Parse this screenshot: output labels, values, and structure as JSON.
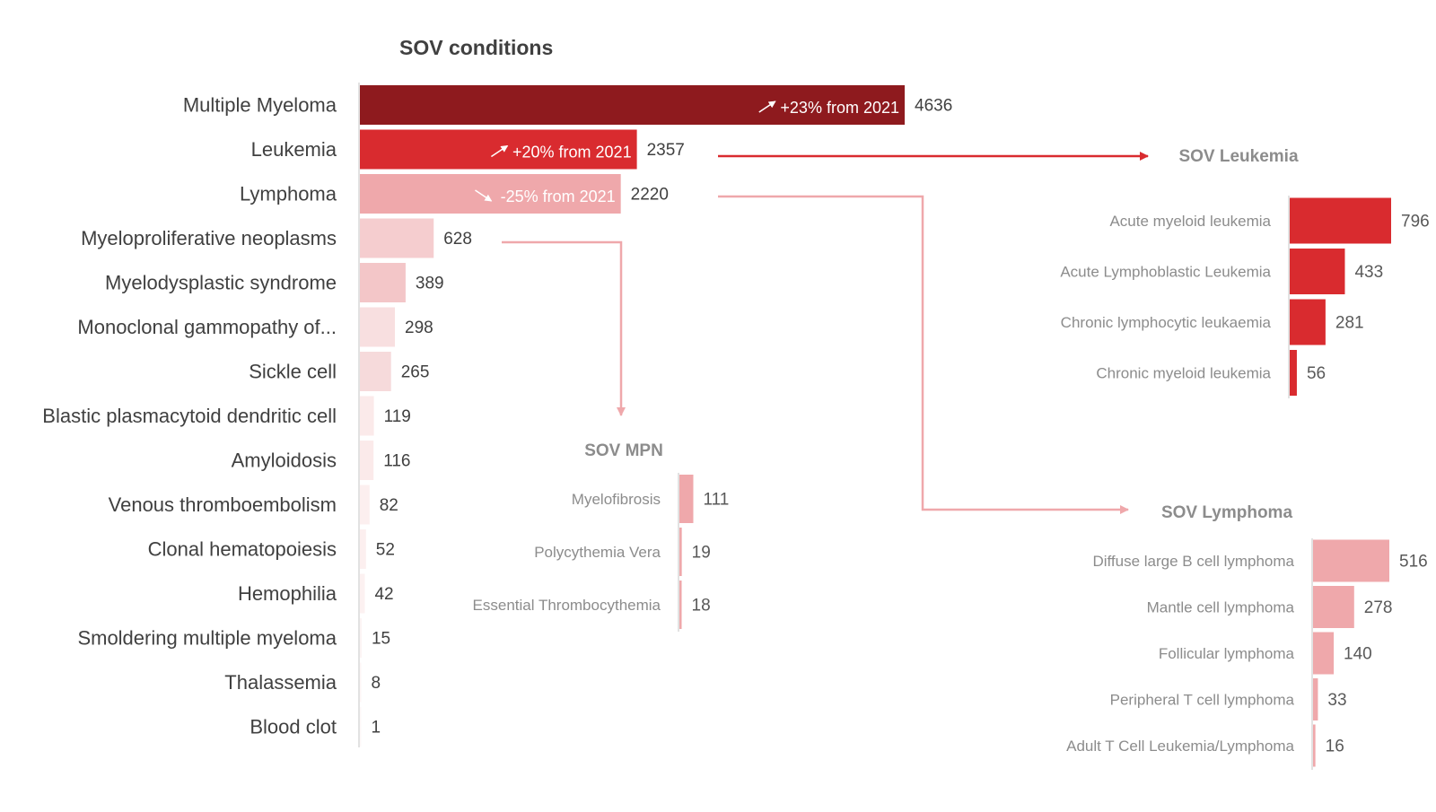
{
  "colors": {
    "dark_red": "#8E1A1E",
    "red": "#D92B2F",
    "pink": "#EFA8AB",
    "connector_red": "#D92B2F",
    "connector_pink": "#EFA8AB",
    "axis": "#D9D9D9",
    "label_dark": "#404040",
    "label_grey": "#8C8C8C"
  },
  "chart_data": [
    {
      "id": "main",
      "type": "bar",
      "orientation": "horizontal",
      "title": "SOV conditions",
      "categories": [
        "Multiple Myeloma",
        "Leukemia",
        "Lymphoma",
        "Myeloproliferative neoplasms",
        "Myelodysplastic syndrome",
        "Monoclonal gammopathy of...",
        "Sickle cell",
        "Blastic plasmacytoid dendritic cell",
        "Amyloidosis",
        "Venous thromboembolism",
        "Clonal hematopoiesis",
        "Hemophilia",
        "Smoldering multiple myeloma",
        "Thalassemia",
        "Blood clot"
      ],
      "values": [
        4636,
        2357,
        2220,
        628,
        389,
        298,
        265,
        119,
        116,
        82,
        52,
        42,
        15,
        8,
        1
      ],
      "bar_colors": [
        "#8E1A1E",
        "#D92B2F",
        "#EFA8AB",
        "#F5CDCF",
        "#F3C6C8",
        "#F8DFE0",
        "#F6DADB",
        "#FBEAEA",
        "#FBEAEA",
        "#FCEFEF",
        "#FCEFEF",
        "#FCF1F1",
        "#FCF4F4",
        "#FDF6F6",
        "#FDF8F8"
      ],
      "annotations": [
        {
          "category": "Multiple Myeloma",
          "text": "+23% from 2021",
          "direction": "up"
        },
        {
          "category": "Leukemia",
          "text": "+20% from 2021",
          "direction": "up"
        },
        {
          "category": "Lymphoma",
          "text": "-25% from 2021",
          "direction": "down"
        }
      ],
      "xlim": [
        0,
        4636
      ]
    },
    {
      "id": "leukemia",
      "type": "bar",
      "orientation": "horizontal",
      "title": "SOV Leukemia",
      "categories": [
        "Acute myeloid leukemia",
        "Acute Lymphoblastic Leukemia",
        "Chronic lymphocytic leukaemia",
        "Chronic myeloid leukemia"
      ],
      "values": [
        796,
        433,
        281,
        56
      ],
      "color": "#D92B2F",
      "xlim": [
        0,
        796
      ]
    },
    {
      "id": "mpn",
      "type": "bar",
      "orientation": "horizontal",
      "title": "SOV MPN",
      "categories": [
        "Myelofibrosis",
        "Polycythemia Vera",
        "Essential Thrombocythemia"
      ],
      "values": [
        111,
        19,
        18
      ],
      "color": "#EFA8AB",
      "xlim": [
        0,
        796
      ]
    },
    {
      "id": "lymphoma",
      "type": "bar",
      "orientation": "horizontal",
      "title": "SOV Lymphoma",
      "categories": [
        "Diffuse large B cell lymphoma",
        "Mantle cell lymphoma",
        "Follicular lymphoma",
        "Peripheral T cell lymphoma",
        "Adult T Cell Leukemia/Lymphoma"
      ],
      "values": [
        516,
        278,
        140,
        33,
        16
      ],
      "color": "#EFA8AB",
      "xlim": [
        0,
        516
      ]
    }
  ]
}
